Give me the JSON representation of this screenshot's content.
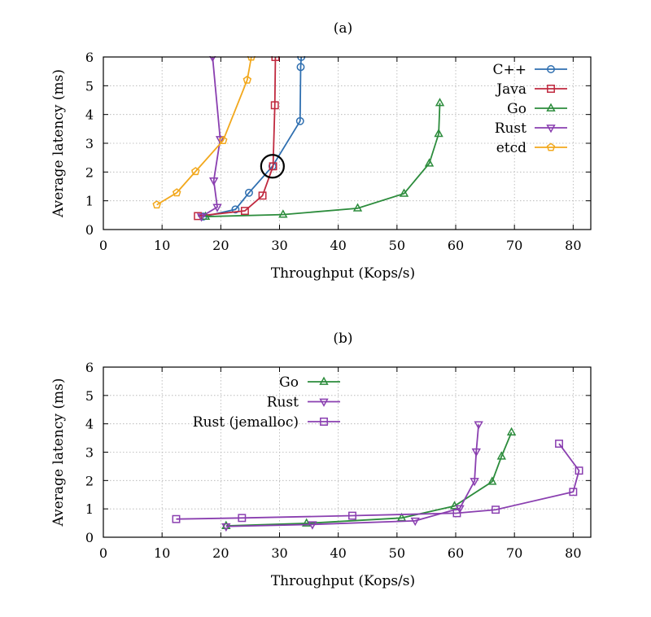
{
  "chart_data": [
    {
      "type": "line",
      "title": "(a)",
      "xlabel": "Throughput (Kops/s)",
      "ylabel": "Average latency (ms)",
      "xlim": [
        0,
        83
      ],
      "ylim": [
        0,
        6
      ],
      "xticks": [
        0,
        10,
        20,
        30,
        40,
        50,
        60,
        70,
        80
      ],
      "yticks": [
        0,
        1,
        2,
        3,
        4,
        5,
        6
      ],
      "grid": true,
      "legend_position": "top-right",
      "highlight": {
        "x": 28.8,
        "y": 2.2,
        "shape": "circle"
      },
      "series": [
        {
          "name": "C++",
          "color": "#2f6fb0",
          "marker": "circle",
          "x": [
            17.0,
            22.5,
            24.8,
            28.8,
            33.5,
            33.6,
            33.7
          ],
          "y": [
            0.45,
            0.7,
            1.28,
            2.2,
            3.77,
            5.65,
            6.0
          ]
        },
        {
          "name": "Java",
          "color": "#c0293f",
          "marker": "square",
          "x": [
            16.1,
            24.1,
            27.1,
            28.9,
            29.2,
            29.3
          ],
          "y": [
            0.47,
            0.65,
            1.18,
            2.2,
            4.32,
            6.0
          ]
        },
        {
          "name": "Go",
          "color": "#2c8c3c",
          "marker": "triangle-up",
          "x": [
            17.4,
            30.6,
            43.3,
            51.2,
            55.5,
            57.1,
            57.3
          ],
          "y": [
            0.45,
            0.52,
            0.74,
            1.25,
            2.3,
            3.33,
            4.4
          ]
        },
        {
          "name": "Rust",
          "color": "#8a3fb0",
          "marker": "triangle-down",
          "x": [
            16.7,
            19.4,
            18.8,
            19.9,
            18.6
          ],
          "y": [
            0.45,
            0.78,
            1.7,
            3.14,
            6.0
          ]
        },
        {
          "name": "etcd",
          "color": "#f2a81d",
          "marker": "pentagon",
          "x": [
            9.1,
            12.5,
            15.7,
            20.4,
            24.5,
            25.2
          ],
          "y": [
            0.86,
            1.28,
            2.02,
            3.1,
            5.2,
            6.0
          ]
        }
      ]
    },
    {
      "type": "line",
      "title": "(b)",
      "xlabel": "Throughput (Kops/s)",
      "ylabel": "Average latency (ms)",
      "xlim": [
        0,
        83
      ],
      "ylim": [
        0,
        6
      ],
      "xticks": [
        0,
        10,
        20,
        30,
        40,
        50,
        60,
        70,
        80
      ],
      "yticks": [
        0,
        1,
        2,
        3,
        4,
        5,
        6
      ],
      "grid": true,
      "legend_position": "top-left",
      "series": [
        {
          "name": "Go",
          "color": "#2c8c3c",
          "marker": "triangle-up",
          "x": [
            20.9,
            34.6,
            50.8,
            59.8,
            66.2,
            67.8,
            69.5
          ],
          "y": [
            0.4,
            0.49,
            0.68,
            1.1,
            1.96,
            2.85,
            3.7
          ]
        },
        {
          "name": "Rust",
          "color": "#8a3fb0",
          "marker": "triangle-down",
          "x": [
            20.9,
            35.6,
            53.1,
            60.7,
            63.2,
            63.5,
            63.9
          ],
          "y": [
            0.38,
            0.45,
            0.58,
            1.02,
            1.98,
            3.02,
            3.98
          ]
        },
        {
          "name": "Rust (jemalloc)",
          "color": "#8a3fb0",
          "marker": "square",
          "x": [
            12.4,
            23.6,
            42.4,
            60.2,
            66.8,
            80.0,
            81.0,
            77.6
          ],
          "y": [
            0.64,
            0.68,
            0.76,
            0.85,
            0.97,
            1.6,
            2.35,
            3.3
          ]
        }
      ]
    }
  ]
}
